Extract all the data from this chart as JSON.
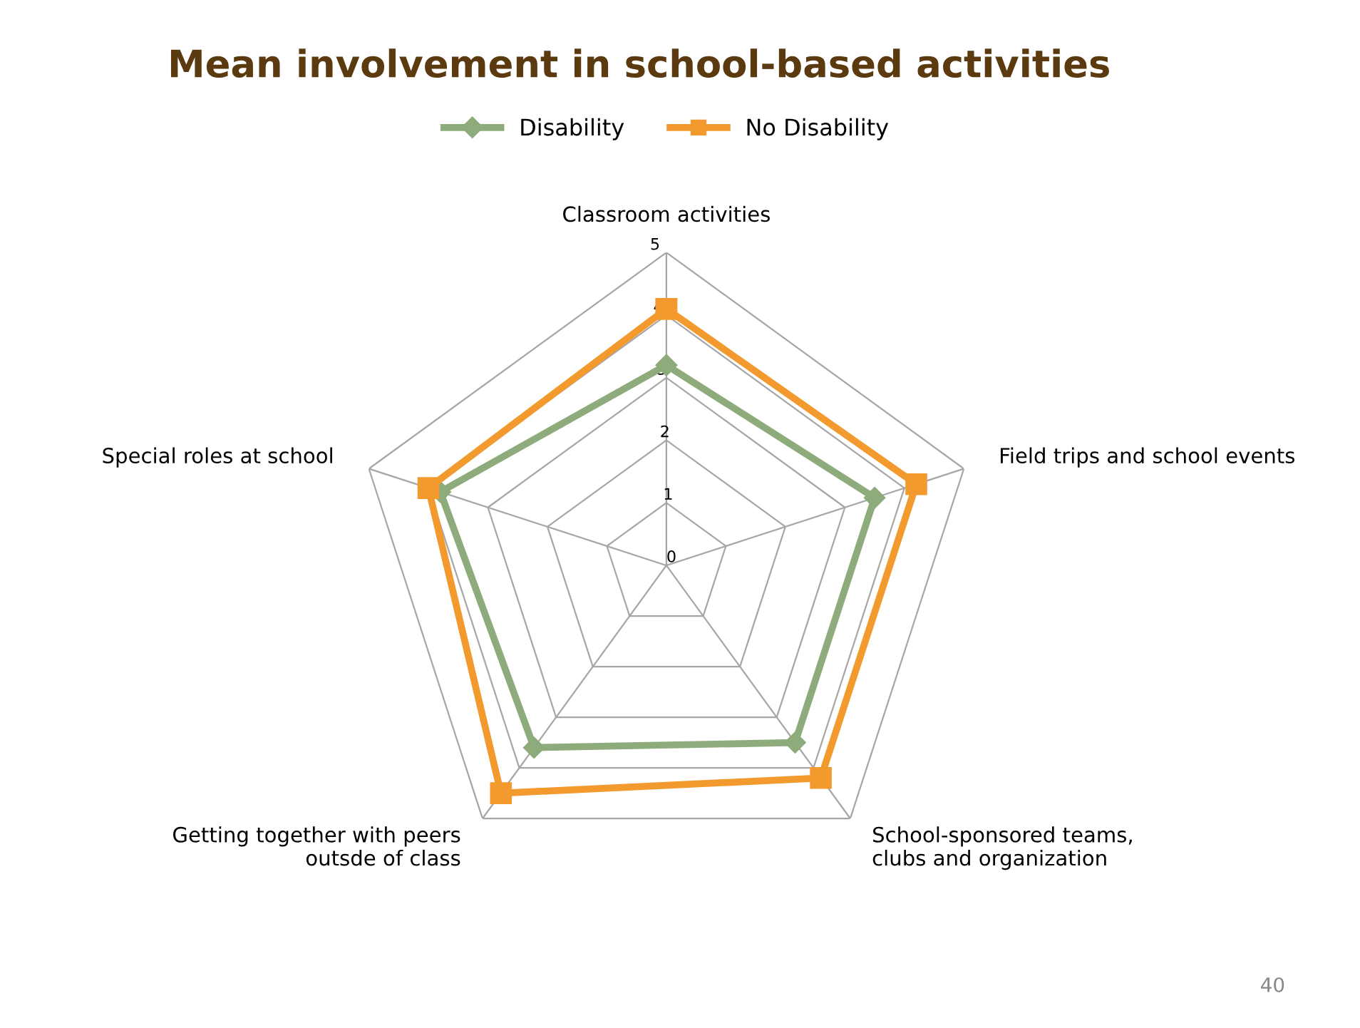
{
  "chart_data": {
    "type": "radar",
    "title": "Mean involvement in school-based activities",
    "categories": [
      "Classroom activities",
      "Field trips and school events",
      "School-sponsored teams,\nclubs and organization",
      "Getting together with peers\noutsde of class",
      "Special roles at school"
    ],
    "series": [
      {
        "name": "Disability",
        "color": "#8eab7b",
        "marker": "diamond",
        "values": [
          3.2,
          3.5,
          3.5,
          3.6,
          3.8
        ]
      },
      {
        "name": "No Disability",
        "color": "#f39a2e",
        "marker": "square",
        "values": [
          4.1,
          4.2,
          4.2,
          4.5,
          4.0
        ]
      }
    ],
    "ylim": [
      0,
      5
    ],
    "yticks": [
      0,
      1,
      2,
      3,
      4,
      5
    ],
    "grid": true,
    "legend": "top",
    "line_style": "solid",
    "annotations": [
      "40"
    ]
  }
}
